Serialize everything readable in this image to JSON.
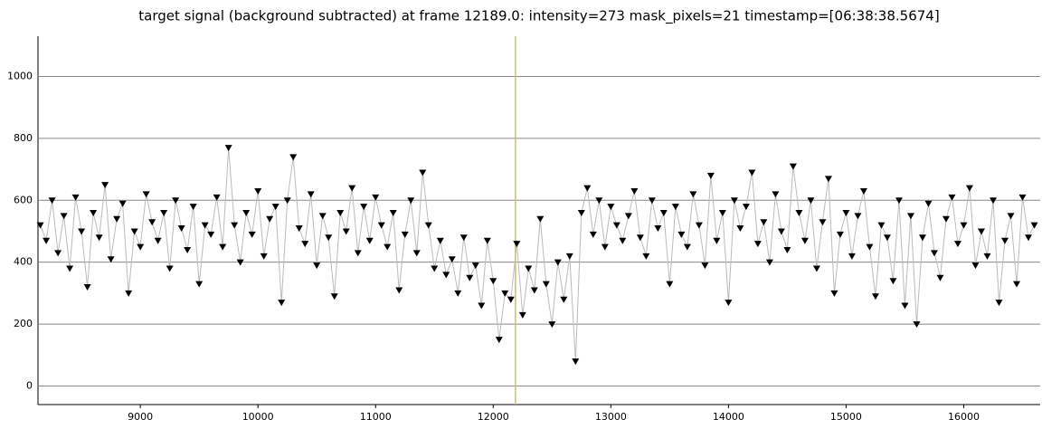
{
  "chart_data": {
    "type": "scatter",
    "title": "target signal (background subtracted) at frame 12189.0: intensity=273 mask_pixels=21 timestamp=[06:38:38.5674]",
    "xlim": [
      8130,
      16650
    ],
    "ylim": [
      -60,
      1130
    ],
    "xticks": [
      9000,
      10000,
      11000,
      12000,
      13000,
      14000,
      15000,
      16000
    ],
    "yticks": [
      0,
      200,
      400,
      600,
      800,
      1000
    ],
    "grid": true,
    "color": "#000000",
    "line_color": "#bbbbbb",
    "cursor_x": 12189,
    "cursor_color": "#c8c070",
    "x": [
      8150,
      8200,
      8250,
      8300,
      8350,
      8400,
      8450,
      8500,
      8550,
      8600,
      8650,
      8700,
      8750,
      8800,
      8850,
      8900,
      8950,
      9000,
      9050,
      9100,
      9150,
      9200,
      9250,
      9300,
      9350,
      9400,
      9450,
      9500,
      9550,
      9600,
      9650,
      9700,
      9750,
      9800,
      9850,
      9900,
      9950,
      10000,
      10050,
      10100,
      10150,
      10200,
      10250,
      10300,
      10350,
      10400,
      10450,
      10500,
      10550,
      10600,
      10650,
      10700,
      10750,
      10800,
      10850,
      10900,
      10950,
      11000,
      11050,
      11100,
      11150,
      11200,
      11250,
      11300,
      11350,
      11400,
      11450,
      11500,
      11550,
      11600,
      11650,
      11700,
      11750,
      11800,
      11850,
      11900,
      11950,
      12000,
      12050,
      12100,
      12150,
      12200,
      12250,
      12300,
      12350,
      12400,
      12450,
      12500,
      12550,
      12600,
      12650,
      12700,
      12750,
      12800,
      12850,
      12900,
      12950,
      13000,
      13050,
      13100,
      13150,
      13200,
      13250,
      13300,
      13350,
      13400,
      13450,
      13500,
      13550,
      13600,
      13650,
      13700,
      13750,
      13800,
      13850,
      13900,
      13950,
      14000,
      14050,
      14100,
      14150,
      14200,
      14250,
      14300,
      14350,
      14400,
      14450,
      14500,
      14550,
      14600,
      14650,
      14700,
      14750,
      14800,
      14850,
      14900,
      14950,
      15000,
      15050,
      15100,
      15150,
      15200,
      15250,
      15300,
      15350,
      15400,
      15450,
      15500,
      15550,
      15600,
      15650,
      15700,
      15750,
      15800,
      15850,
      15900,
      15950,
      16000,
      16050,
      16100,
      16150,
      16200,
      16250,
      16300,
      16350,
      16400,
      16450,
      16500,
      16550,
      16600
    ],
    "values": [
      520,
      470,
      600,
      430,
      550,
      380,
      610,
      500,
      320,
      560,
      480,
      650,
      410,
      540,
      590,
      300,
      500,
      450,
      620,
      530,
      470,
      560,
      380,
      600,
      510,
      440,
      580,
      330,
      520,
      490,
      610,
      450,
      770,
      520,
      400,
      560,
      490,
      630,
      420,
      540,
      580,
      270,
      600,
      740,
      510,
      460,
      620,
      390,
      550,
      480,
      290,
      560,
      500,
      640,
      430,
      580,
      470,
      610,
      520,
      450,
      560,
      310,
      490,
      600,
      430,
      690,
      520,
      380,
      470,
      360,
      410,
      300,
      480,
      350,
      390,
      260,
      470,
      340,
      150,
      300,
      280,
      460,
      230,
      380,
      310,
      540,
      330,
      200,
      400,
      280,
      420,
      80,
      560,
      640,
      490,
      600,
      450,
      580,
      520,
      470,
      550,
      630,
      480,
      420,
      600,
      510,
      560,
      330,
      580,
      490,
      450,
      620,
      520,
      390,
      680,
      470,
      560,
      270,
      600,
      510,
      580,
      690,
      460,
      530,
      400,
      620,
      500,
      440,
      710,
      560,
      470,
      600,
      380,
      530,
      670,
      300,
      490,
      560,
      420,
      550,
      630,
      450,
      290,
      520,
      480,
      340,
      600,
      260,
      550,
      200,
      480,
      590,
      430,
      350,
      540,
      610,
      460,
      520,
      640,
      390,
      500,
      420,
      600,
      270,
      470,
      550,
      330,
      610,
      480,
      520
    ]
  }
}
